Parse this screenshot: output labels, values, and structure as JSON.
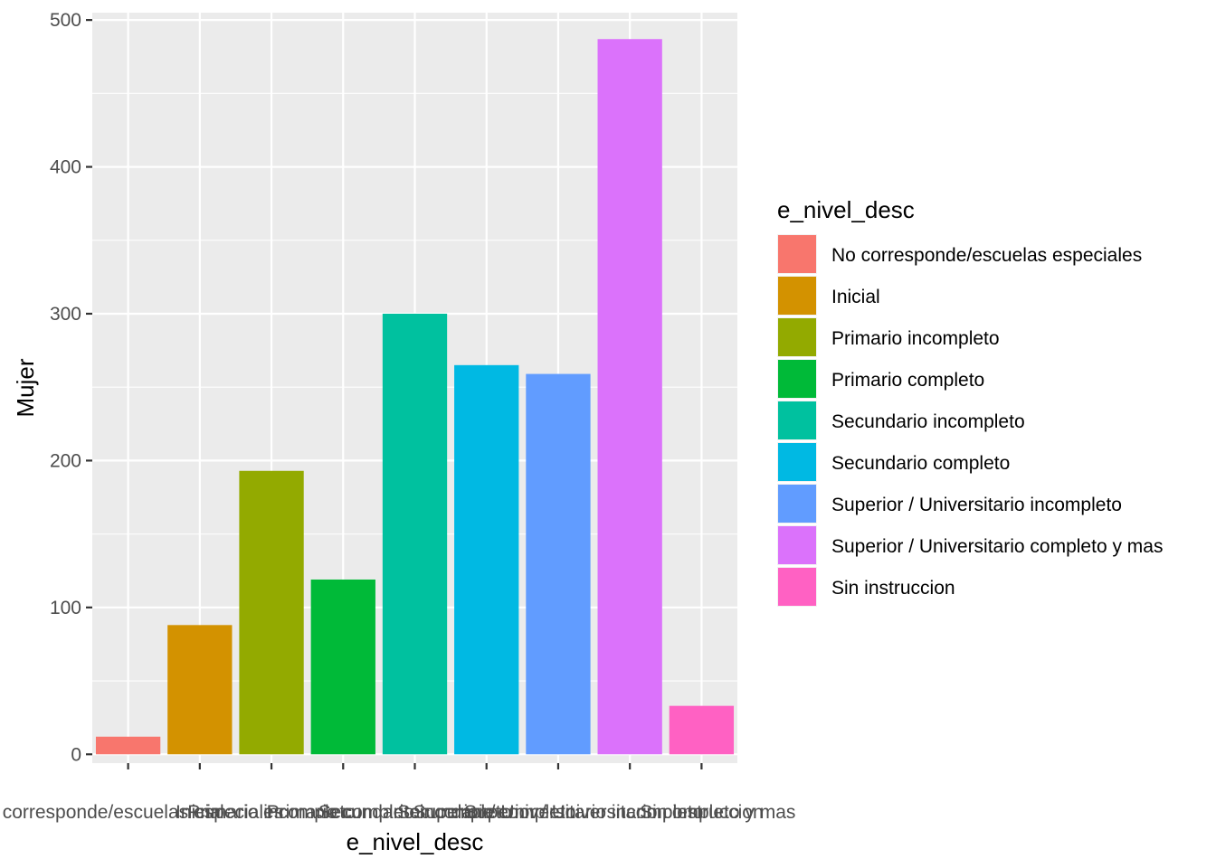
{
  "chart_data": {
    "type": "bar",
    "xlabel": "e_nivel_desc",
    "ylabel": "Mujer",
    "ylim": [
      -6,
      505
    ],
    "yticks": [
      0,
      100,
      200,
      300,
      400,
      500
    ],
    "grid": true,
    "legend_position": "right",
    "legend_title": "e_nivel_desc",
    "categories": [
      "No corresponde/escuelas especiales",
      "Inicial",
      "Primario incompleto",
      "Primario completo",
      "Secundario incompleto",
      "Secundario completo",
      "Superior / Universitario incompleto",
      "Superior / Universitario completo y mas",
      "Sin instruccion"
    ],
    "values": [
      12,
      88,
      193,
      119,
      300,
      265,
      259,
      487,
      33
    ],
    "colors": [
      "#F8766D",
      "#D39200",
      "#93AA00",
      "#00BA38",
      "#00C19F",
      "#00B9E3",
      "#619CFF",
      "#DB72FB",
      "#FF61C3"
    ]
  }
}
